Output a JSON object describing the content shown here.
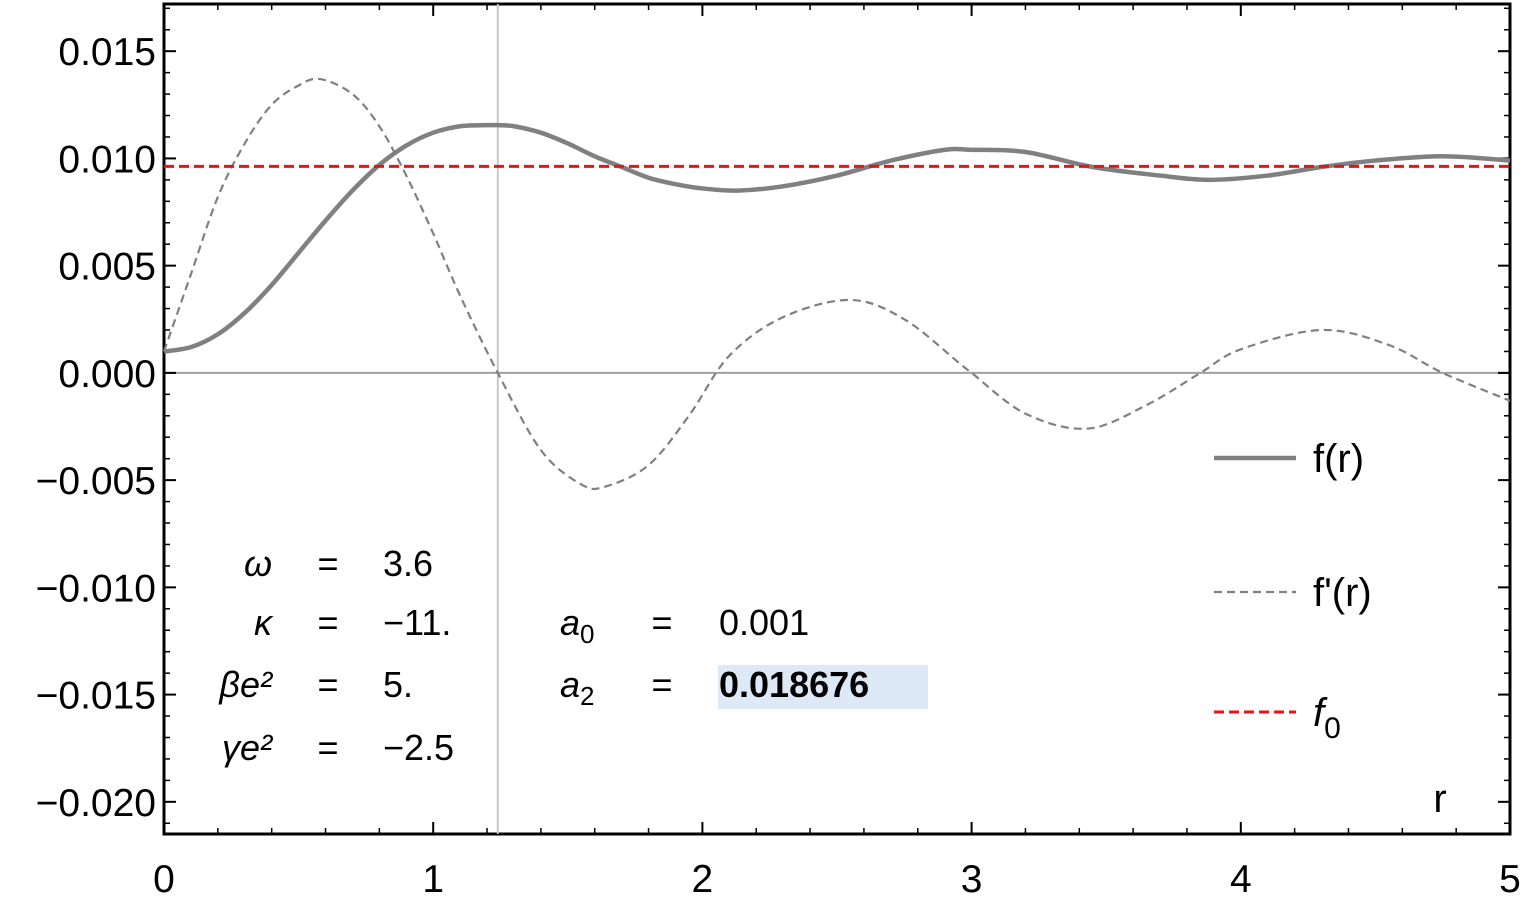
{
  "chart_data": {
    "type": "line",
    "title": "",
    "xlabel": "r",
    "ylabel": "",
    "xlim": [
      0,
      5
    ],
    "ylim": [
      -0.0215,
      0.0172
    ],
    "x_ticks": [
      "0",
      "1",
      "2",
      "3",
      "4",
      "5"
    ],
    "y_ticks": [
      "0.015",
      "0.010",
      "0.005",
      "0.000",
      "−0.005",
      "−0.010",
      "−0.015",
      "−0.020"
    ],
    "x_tick_values": [
      0,
      1,
      2,
      3,
      4,
      5
    ],
    "y_tick_values": [
      0.015,
      0.01,
      0.005,
      0.0,
      -0.005,
      -0.01,
      -0.015,
      -0.02
    ],
    "grid": false,
    "vertical_marker_x": 1.24,
    "series": [
      {
        "name": "f(r)",
        "color": "#808080",
        "style": "solid",
        "x": [
          0,
          0.1,
          0.2,
          0.3,
          0.4,
          0.5,
          0.6,
          0.7,
          0.8,
          0.9,
          1.0,
          1.1,
          1.2,
          1.24,
          1.3,
          1.4,
          1.5,
          1.6,
          1.7,
          1.8,
          1.9,
          2.0,
          2.13,
          2.3,
          2.5,
          2.7,
          2.9,
          3.0,
          3.2,
          3.45,
          3.7,
          3.88,
          4.1,
          4.3,
          4.5,
          4.75,
          5.0
        ],
        "y": [
          0.001,
          0.0012,
          0.0018,
          0.0028,
          0.0041,
          0.0056,
          0.0071,
          0.0085,
          0.0097,
          0.0106,
          0.0112,
          0.0115,
          0.01155,
          0.01155,
          0.0115,
          0.0112,
          0.0107,
          0.0101,
          0.0096,
          0.0091,
          0.0088,
          0.0086,
          0.0085,
          0.0087,
          0.0092,
          0.0099,
          0.0104,
          0.0104,
          0.0103,
          0.0096,
          0.0092,
          0.009,
          0.0092,
          0.0096,
          0.0099,
          0.0101,
          0.0099
        ]
      },
      {
        "name": "f'(r)",
        "color": "#808080",
        "style": "dashed",
        "x": [
          0,
          0.1,
          0.2,
          0.3,
          0.4,
          0.5,
          0.58,
          0.7,
          0.8,
          0.9,
          1.0,
          1.1,
          1.24,
          1.4,
          1.55,
          1.64,
          1.8,
          1.95,
          2.1,
          2.3,
          2.55,
          2.75,
          2.95,
          3.0,
          3.2,
          3.43,
          3.65,
          3.85,
          4.0,
          4.3,
          4.55,
          4.75,
          5.0
        ],
        "y": [
          0.001,
          0.0046,
          0.0082,
          0.0107,
          0.0125,
          0.0134,
          0.0137,
          0.013,
          0.0115,
          0.0092,
          0.0065,
          0.0036,
          0.0,
          -0.0036,
          -0.0052,
          -0.0053,
          -0.0043,
          -0.002,
          0.0008,
          0.0026,
          0.0034,
          0.0025,
          0.0005,
          0.0,
          -0.0019,
          -0.0026,
          -0.0015,
          0.0,
          0.0011,
          0.002,
          0.0013,
          0.0,
          -0.0013
        ]
      },
      {
        "name": "f",
        "name_subscript": "0",
        "color": "#ee1111",
        "style": "dashed",
        "x": [
          0,
          5
        ],
        "y": [
          0.00963,
          0.00963
        ]
      }
    ],
    "legend_position": "right",
    "annotations": {
      "left_params": [
        {
          "symbol": "ω",
          "eq": "=",
          "value": "3.6"
        },
        {
          "symbol": "κ",
          "eq": "=",
          "value": "−11."
        },
        {
          "symbol": "βe²",
          "eq": "=",
          "value": "5."
        },
        {
          "symbol": "γe²",
          "eq": "=",
          "value": "−2.5"
        }
      ],
      "right_params": [
        {
          "symbol": "a",
          "subscript": "0",
          "eq": "=",
          "value": "0.001",
          "highlight": false
        },
        {
          "symbol": "a",
          "subscript": "2",
          "eq": "=",
          "value": "0.018676",
          "highlight": true
        }
      ],
      "highlight_color": "#dde9f7"
    }
  }
}
